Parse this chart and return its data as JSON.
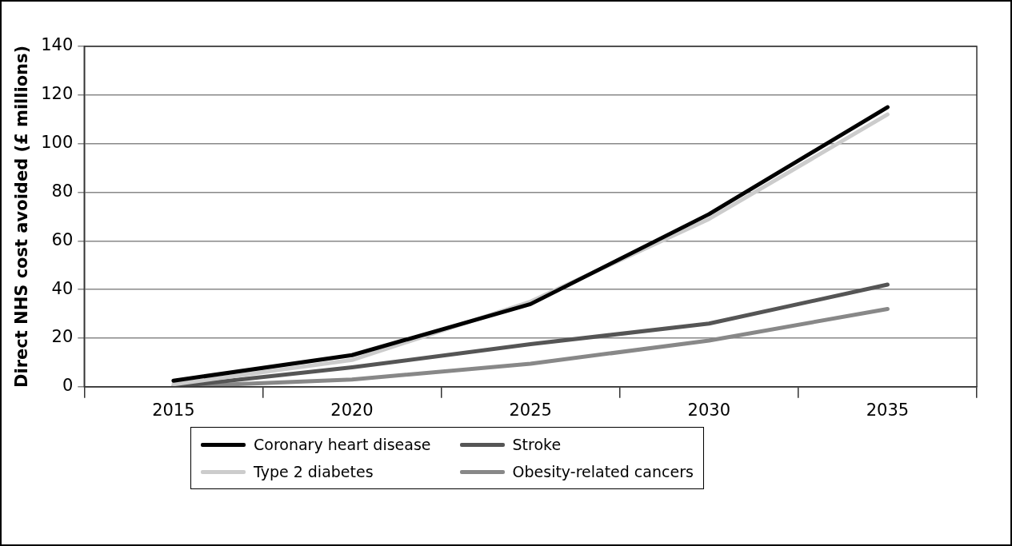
{
  "chart_data": {
    "type": "line",
    "ylabel": "Direct NHS cost avoided (£ millions)",
    "categories": [
      "2015",
      "2020",
      "2025",
      "2030",
      "2035"
    ],
    "series": [
      {
        "name": "Coronary heart disease",
        "color": "#000000",
        "values": [
          2.5,
          13,
          34,
          71,
          115
        ]
      },
      {
        "name": "Type 2 diabetes",
        "color": "#cccccc",
        "values": [
          1,
          11,
          35,
          69,
          112
        ]
      },
      {
        "name": "Stroke",
        "color": "#555555",
        "values": [
          0,
          8,
          17.5,
          26,
          42
        ]
      },
      {
        "name": "Obesity-related cancers",
        "color": "#888888",
        "values": [
          0,
          3,
          9.5,
          19,
          32
        ]
      }
    ],
    "ylim": [
      0,
      140
    ],
    "yticks": [
      0,
      20,
      40,
      60,
      80,
      100,
      120,
      140
    ],
    "grid": "y",
    "legend": "bottom",
    "marker": "none",
    "line_style": "solid"
  }
}
